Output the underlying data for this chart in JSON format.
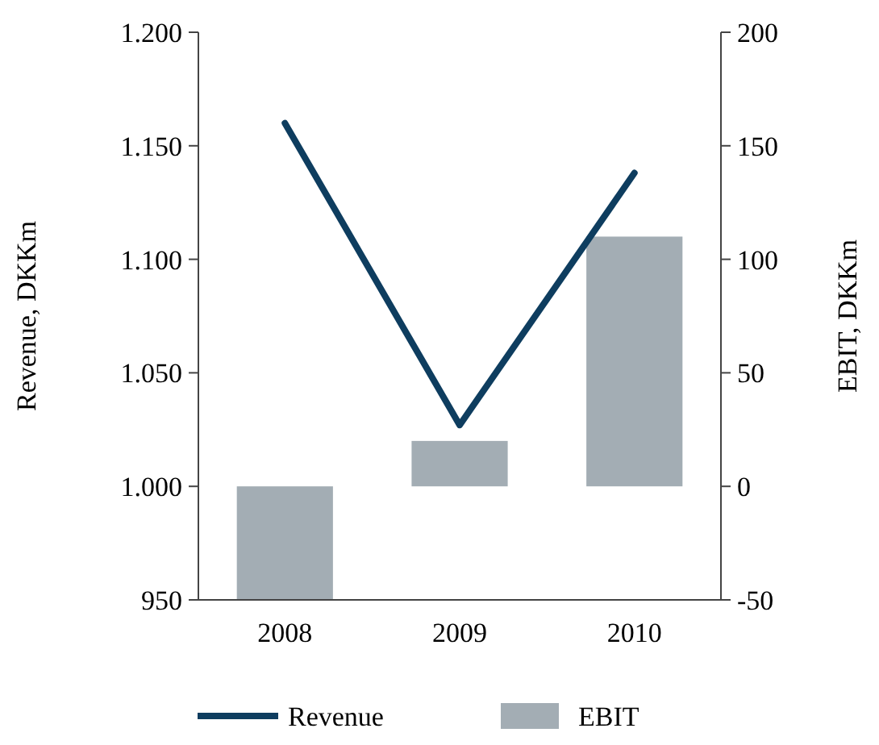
{
  "chart_data": {
    "type": "bar",
    "ylabel": "Revenue, DKKm",
    "y2label": "EBIT, DKKm",
    "categories": [
      "2008",
      "2009",
      "2010"
    ],
    "series": [
      {
        "name": "Revenue",
        "type": "line",
        "color": "#0e3d5f",
        "values": [
          1160,
          1027,
          1138
        ]
      },
      {
        "name": "EBIT",
        "axis": "y2",
        "color": "#a3adb4",
        "values": [
          -50,
          20,
          110
        ]
      }
    ],
    "ylim": [
      950,
      1200
    ],
    "yticks": [
      950,
      {
        "value": 1000,
        "label": "1.000"
      },
      {
        "value": 1050,
        "label": "1.050"
      },
      {
        "value": 1100,
        "label": "1.100"
      },
      {
        "value": 1150,
        "label": "1.150"
      },
      {
        "value": 1200,
        "label": "1.200"
      }
    ],
    "y2lim": [
      -50,
      200
    ],
    "y2ticks": [
      -50,
      0,
      50,
      100,
      150,
      200
    ],
    "grid": false,
    "legend": "bottom"
  }
}
